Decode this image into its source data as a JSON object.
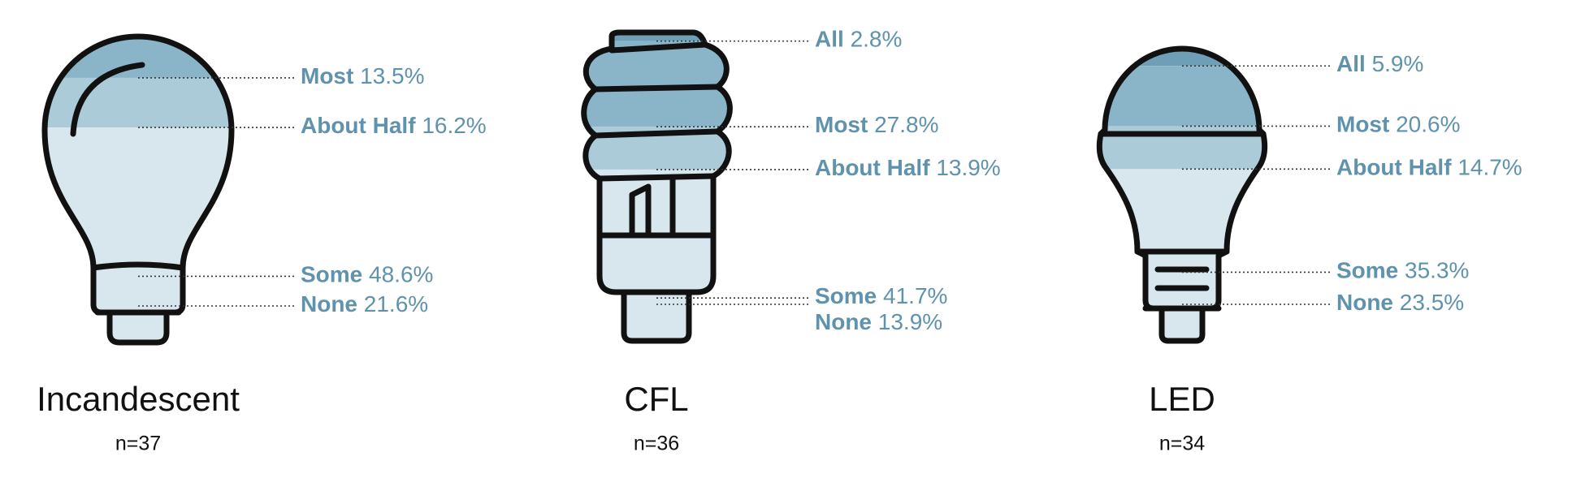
{
  "chart_data": [
    {
      "type": "pictogram",
      "shape": "incandescent",
      "title": "Incandescent",
      "subtitle": "n=37",
      "categories": [
        "Most",
        "About Half",
        "Some",
        "None"
      ],
      "values": [
        13.5,
        16.2,
        48.6,
        21.6
      ],
      "value_labels": [
        "13.5%",
        "16.2%",
        "48.6%",
        "21.6%"
      ],
      "colors": [
        "#8ab5c8",
        "#abcbd9",
        "#d8e6ee",
        "#d8e6ee"
      ]
    },
    {
      "type": "pictogram",
      "shape": "cfl",
      "title": "CFL",
      "subtitle": "n=36",
      "categories": [
        "All",
        "Most",
        "About Half",
        "Some",
        "None"
      ],
      "values": [
        2.8,
        27.8,
        13.9,
        41.7,
        13.9
      ],
      "value_labels": [
        "2.8%",
        "27.8%",
        "13.9%",
        "41.7%",
        "13.9%"
      ],
      "colors": [
        "#6f9fb6",
        "#8ab5c8",
        "#abcbd9",
        "#d8e6ee",
        "#d8e6ee"
      ]
    },
    {
      "type": "pictogram",
      "shape": "led",
      "title": "LED",
      "subtitle": "n=34",
      "categories": [
        "All",
        "Most",
        "About Half",
        "Some",
        "None"
      ],
      "values": [
        5.9,
        20.6,
        14.7,
        35.3,
        23.5
      ],
      "value_labels": [
        "5.9%",
        "20.6%",
        "14.7%",
        "35.3%",
        "23.5%"
      ],
      "colors": [
        "#6f9fb6",
        "#8ab5c8",
        "#abcbd9",
        "#d8e6ee",
        "#d8e6ee"
      ]
    }
  ]
}
